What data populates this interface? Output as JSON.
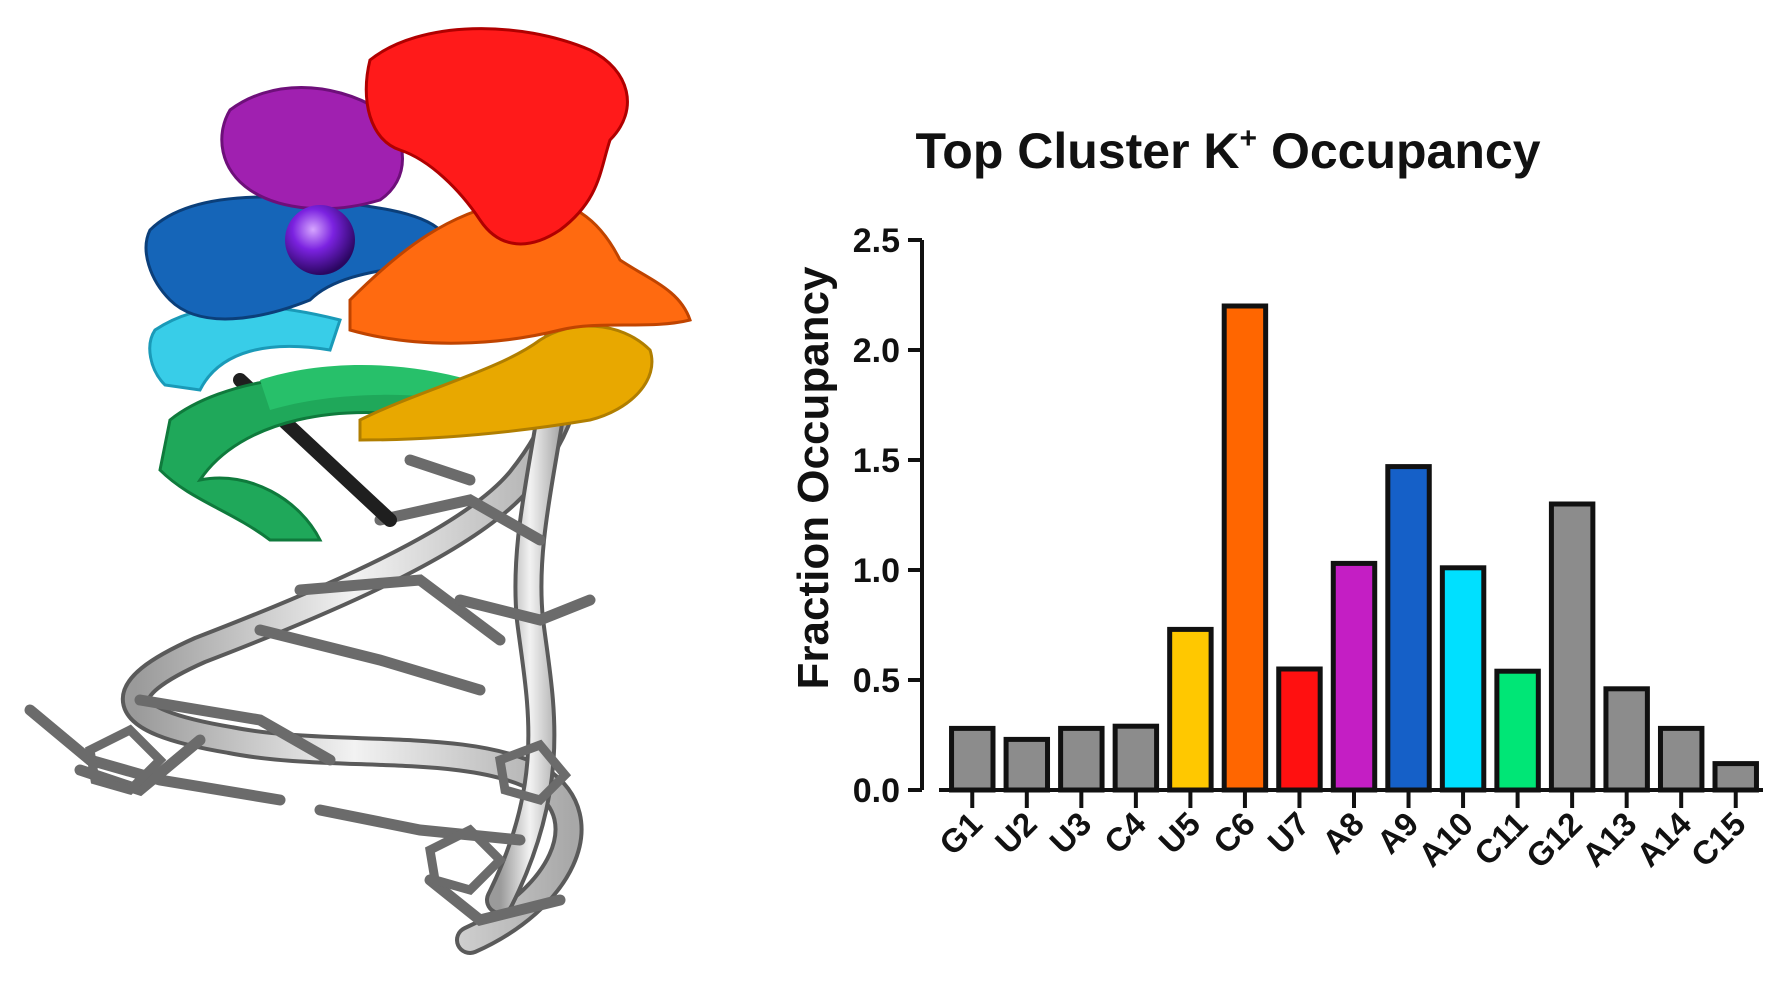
{
  "chart_data": {
    "type": "bar",
    "title_main": "Top Cluster K",
    "title_superscript": "+",
    "title_tail": " Occupancy",
    "ylabel": "Fraction  Occupancy",
    "xlabel": "",
    "ylim": [
      0,
      2.5
    ],
    "yticks": [
      "0.0",
      "0.5",
      "1.0",
      "1.5",
      "2.0",
      "2.5"
    ],
    "ytick_values": [
      0,
      0.5,
      1.0,
      1.5,
      2.0,
      2.5
    ],
    "categories": [
      "G1",
      "U2",
      "U3",
      "C4",
      "U5",
      "C6",
      "U7",
      "A8",
      "A9",
      "A10",
      "C11",
      "G12",
      "A13",
      "A14",
      "C15"
    ],
    "values": [
      0.28,
      0.23,
      0.28,
      0.29,
      0.73,
      2.2,
      0.55,
      1.03,
      1.47,
      1.01,
      0.54,
      1.3,
      0.46,
      0.28,
      0.12
    ],
    "colors": [
      "#8c8c8c",
      "#8c8c8c",
      "#8c8c8c",
      "#8c8c8c",
      "#ffc800",
      "#ff6600",
      "#ff1010",
      "#c41ec4",
      "#1560c8",
      "#00e0ff",
      "#00e676",
      "#8c8c8c",
      "#8c8c8c",
      "#8c8c8c",
      "#8c8c8c"
    ],
    "grid": false,
    "legend": "none"
  },
  "structure_image": {
    "description_colors": [
      "#ff1a1a",
      "#a020b0",
      "#1565b8",
      "#ff6a10",
      "#38d4f0",
      "#20b060",
      "#e8a800",
      "#7b2be0",
      "#6f6f6f"
    ]
  }
}
